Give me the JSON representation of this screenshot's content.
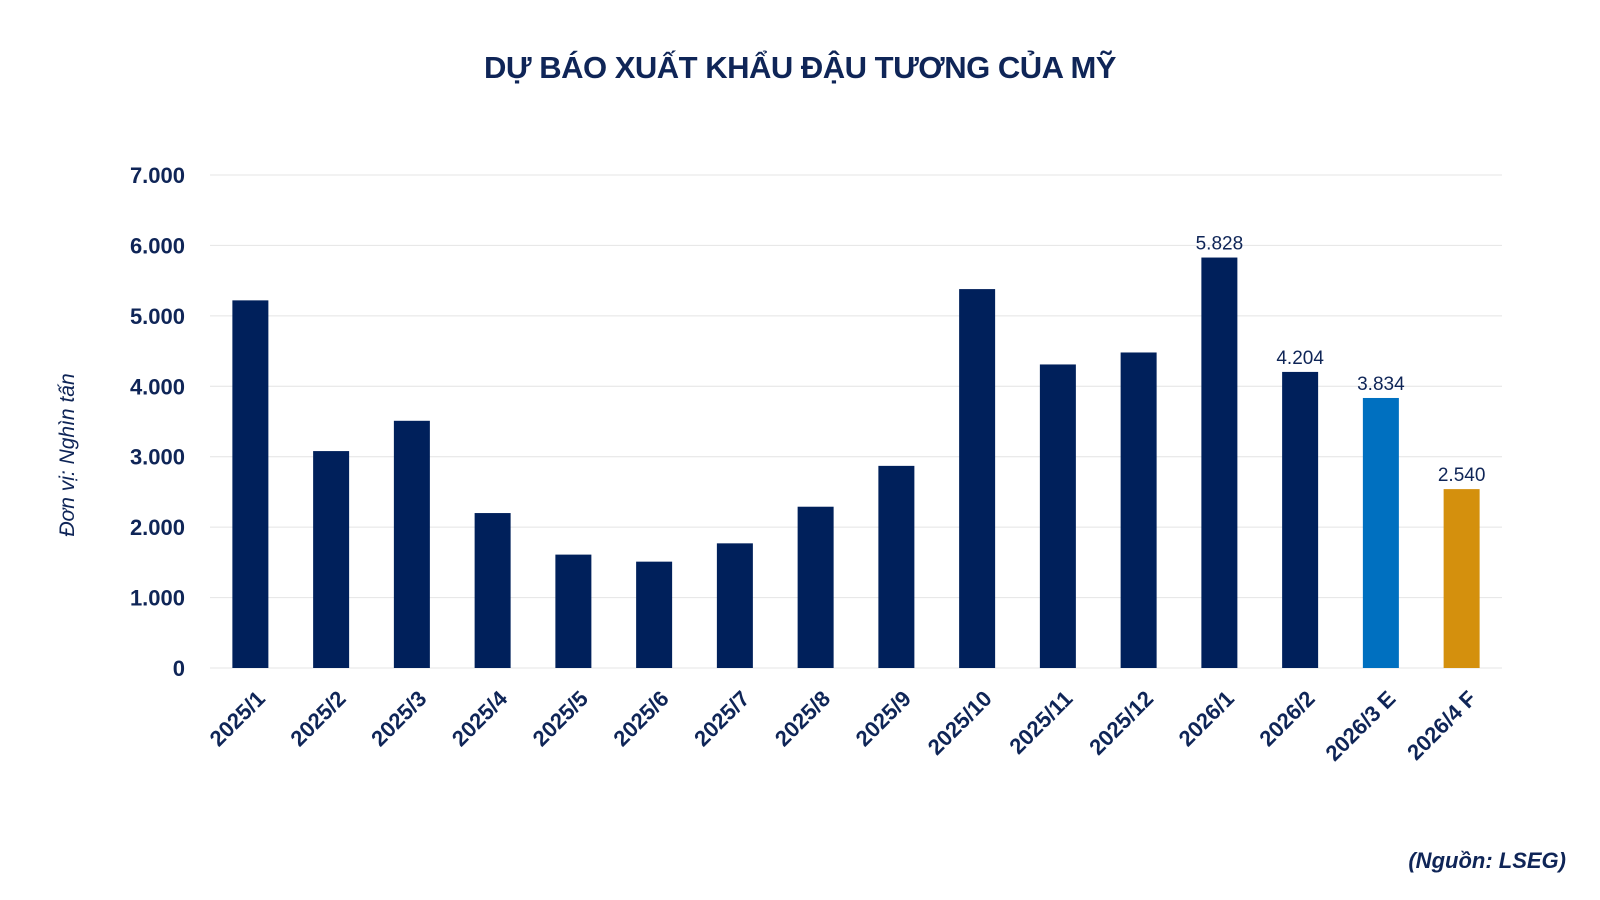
{
  "chart_data": {
    "type": "bar",
    "title": "DỰ BÁO XUẤT KHẨU ĐẬU TƯƠNG CỦA MỸ",
    "ylabel": "Đơn vị: Nghìn tấn",
    "xlabel": "",
    "ylim": [
      0,
      7000
    ],
    "yticks": [
      0,
      1000,
      2000,
      3000,
      4000,
      5000,
      6000,
      7000
    ],
    "ytick_labels": [
      "0",
      "1.000",
      "2.000",
      "3.000",
      "4.000",
      "5.000",
      "6.000",
      "7.000"
    ],
    "grid": true,
    "categories": [
      "2025/1",
      "2025/2",
      "2025/3",
      "2025/4",
      "2025/5",
      "2025/6",
      "2025/7",
      "2025/8",
      "2025/9",
      "2025/10",
      "2025/11",
      "2025/12",
      "2026/1",
      "2026/2",
      "2026/3 E",
      "2026/4 F"
    ],
    "values": [
      5220,
      3080,
      3510,
      2200,
      1610,
      1510,
      1770,
      2290,
      2870,
      5380,
      4310,
      4480,
      5828,
      4204,
      3834,
      2540
    ],
    "data_labels": [
      "",
      "",
      "",
      "",
      "",
      "",
      "",
      "",
      "",
      "",
      "",
      "",
      "5.828",
      "4.204",
      "3.834",
      "2.540"
    ],
    "bar_colors": [
      "#00205b",
      "#00205b",
      "#00205b",
      "#00205b",
      "#00205b",
      "#00205b",
      "#00205b",
      "#00205b",
      "#00205b",
      "#00205b",
      "#00205b",
      "#00205b",
      "#00205b",
      "#00205b",
      "#0070c0",
      "#d4900d"
    ]
  },
  "source": "(Nguồn: LSEG)",
  "colors": {
    "text": "#0f2557",
    "grid": "#e4e4e4"
  }
}
